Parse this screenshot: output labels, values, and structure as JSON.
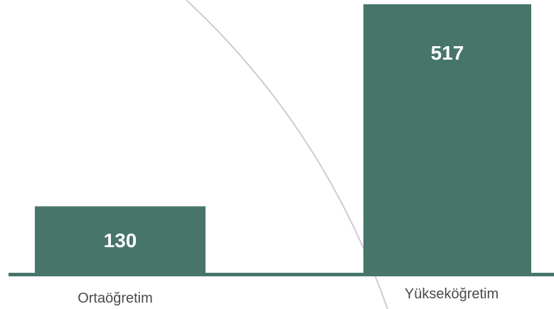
{
  "chart_data": {
    "type": "bar",
    "categories": [
      "Ortaöğretim",
      "Yükseköğretim"
    ],
    "values": [
      130,
      517
    ],
    "ylim": [
      0,
      517
    ],
    "grid": false,
    "legend": "none",
    "colors": {
      "bar": "#47756A",
      "baseline": "#47756A",
      "value_label": "#ffffff",
      "category_label": "#4a4a4a",
      "decorative_arc": "#d6c6d8"
    }
  }
}
